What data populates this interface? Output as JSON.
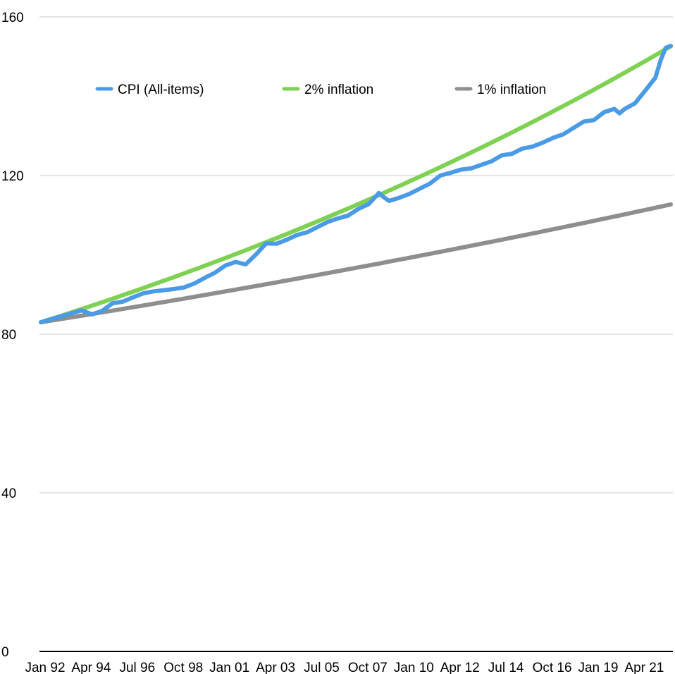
{
  "chart_data": {
    "type": "line",
    "title": "",
    "xlabel": "",
    "ylabel": "",
    "ylim": [
      0,
      160
    ],
    "yticks": [
      0,
      40,
      80,
      120,
      160
    ],
    "xlim": [
      "Jan 92",
      "Oct 22"
    ],
    "xticks": [
      "Jan 92",
      "Apr 94",
      "Jul 96",
      "Oct 98",
      "Jan 01",
      "Apr 03",
      "Jul 05",
      "Oct 07",
      "Jan 10",
      "Apr 12",
      "Jul 14",
      "Oct 16",
      "Jan 19",
      "Apr 21"
    ],
    "grid": true,
    "legend_position": "top",
    "series": [
      {
        "name": "CPI (All-items)",
        "color": "#4a9ae6",
        "points": [
          [
            "Jan 92",
            83.0
          ],
          [
            "Jul 92",
            83.8
          ],
          [
            "Jan 93",
            84.5
          ],
          [
            "Jul 93",
            85.3
          ],
          [
            "Jan 94",
            86.0
          ],
          [
            "Jul 94",
            85.0
          ],
          [
            "Jan 95",
            85.9
          ],
          [
            "Jul 95",
            87.8
          ],
          [
            "Jan 96",
            88.2
          ],
          [
            "Jul 96",
            89.3
          ],
          [
            "Jan 97",
            90.3
          ],
          [
            "Jul 97",
            90.8
          ],
          [
            "Jan 98",
            91.1
          ],
          [
            "Jul 98",
            91.4
          ],
          [
            "Jan 99",
            91.8
          ],
          [
            "Jul 99",
            92.8
          ],
          [
            "Jan 00",
            94.2
          ],
          [
            "Jul 00",
            95.5
          ],
          [
            "Jan 01",
            97.3
          ],
          [
            "Jul 01",
            98.2
          ],
          [
            "Jan 02",
            97.6
          ],
          [
            "Jul 02",
            100.1
          ],
          [
            "Jan 03",
            102.9
          ],
          [
            "Jul 03",
            102.8
          ],
          [
            "Jan 04",
            103.8
          ],
          [
            "Jul 04",
            105.0
          ],
          [
            "Jan 05",
            105.7
          ],
          [
            "Jul 05",
            107.0
          ],
          [
            "Jan 06",
            108.3
          ],
          [
            "Jul 06",
            109.2
          ],
          [
            "Jan 07",
            109.9
          ],
          [
            "Jul 07",
            111.6
          ],
          [
            "Jan 08",
            112.8
          ],
          [
            "Jul 08",
            115.6
          ],
          [
            "Oct 08",
            114.5
          ],
          [
            "Jan 09",
            113.6
          ],
          [
            "Jul 09",
            114.4
          ],
          [
            "Jan 10",
            115.4
          ],
          [
            "Jul 10",
            116.7
          ],
          [
            "Jan 11",
            118.0
          ],
          [
            "Jul 11",
            120.0
          ],
          [
            "Jan 12",
            120.7
          ],
          [
            "Jul 12",
            121.5
          ],
          [
            "Jan 13",
            121.8
          ],
          [
            "Jul 13",
            122.7
          ],
          [
            "Jan 14",
            123.6
          ],
          [
            "Jul 14",
            125.1
          ],
          [
            "Jan 15",
            125.5
          ],
          [
            "Jul 15",
            126.8
          ],
          [
            "Jan 16",
            127.3
          ],
          [
            "Jul 16",
            128.3
          ],
          [
            "Jan 17",
            129.5
          ],
          [
            "Jul 17",
            130.4
          ],
          [
            "Jan 18",
            132.0
          ],
          [
            "Jul 18",
            133.6
          ],
          [
            "Jan 19",
            134.0
          ],
          [
            "Jul 19",
            136.0
          ],
          [
            "Jan 20",
            136.8
          ],
          [
            "Apr 20",
            135.7
          ],
          [
            "Jul 20",
            136.8
          ],
          [
            "Jan 21",
            138.2
          ],
          [
            "Jul 21",
            141.4
          ],
          [
            "Jan 22",
            144.7
          ],
          [
            "Apr 22",
            149.0
          ],
          [
            "Jul 22",
            152.2
          ],
          [
            "Oct 22",
            152.7
          ]
        ]
      },
      {
        "name": "2% inflation",
        "color": "#7ed152",
        "growth_rate_annual": 0.02,
        "points": [
          [
            "Jan 92",
            83.0
          ],
          [
            "Oct 22",
            152.5
          ]
        ]
      },
      {
        "name": "1% inflation",
        "color": "#8e8e8e",
        "growth_rate_annual": 0.01,
        "points": [
          [
            "Jan 92",
            83.0
          ],
          [
            "Oct 22",
            112.8
          ]
        ]
      }
    ]
  }
}
